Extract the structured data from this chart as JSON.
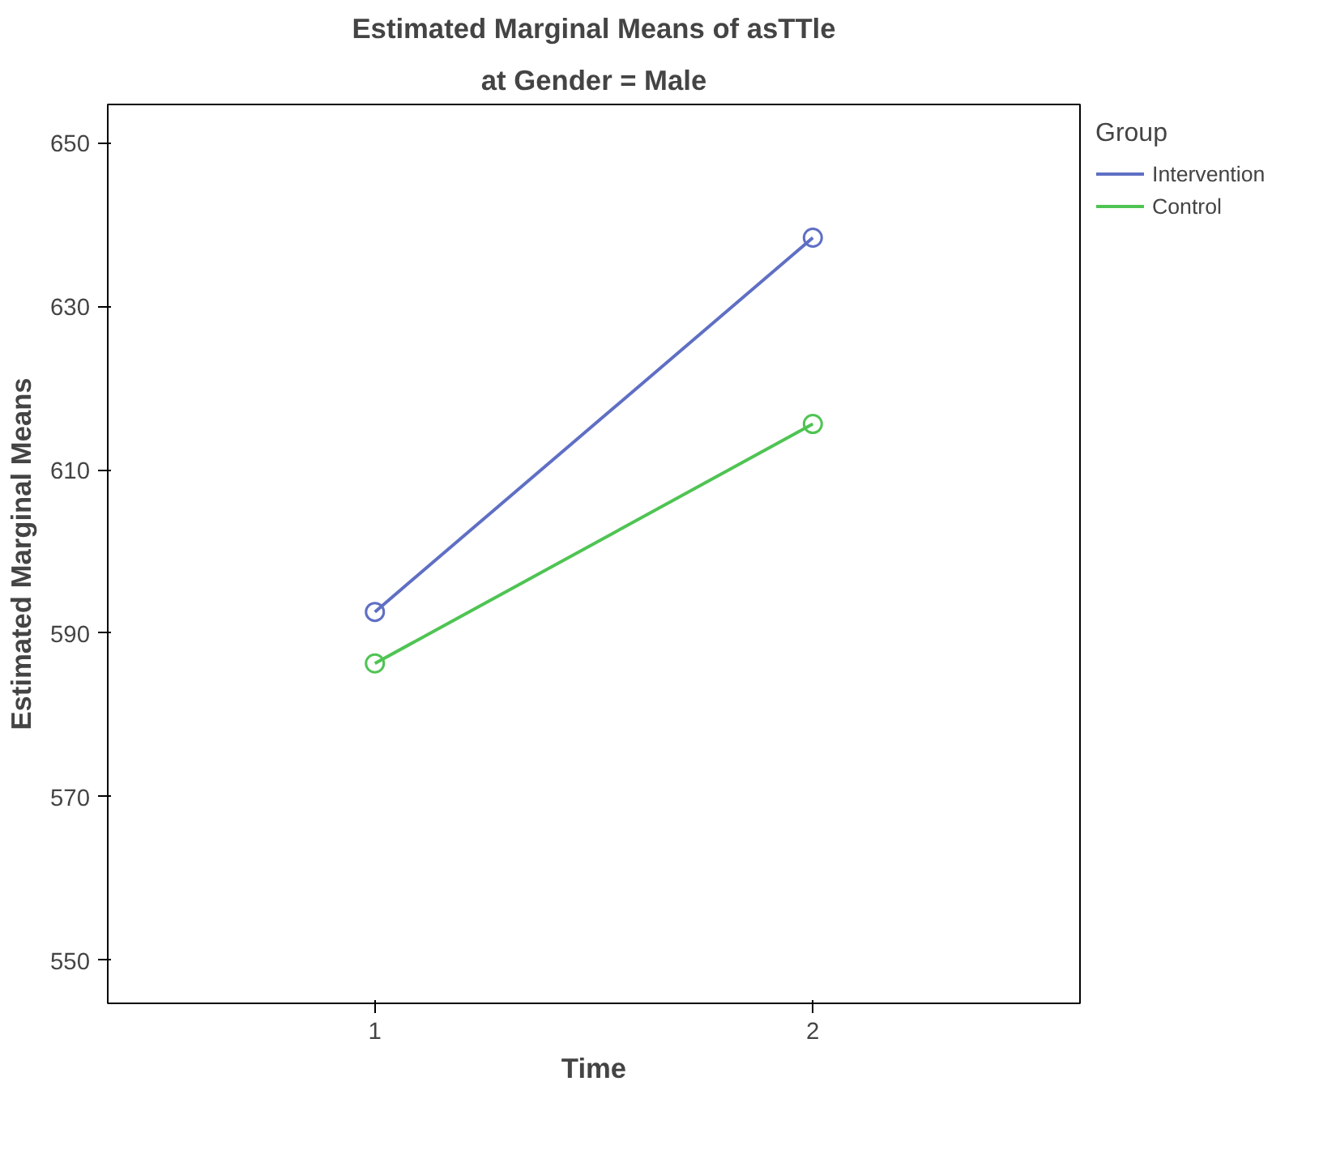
{
  "chart_data": {
    "type": "line",
    "title": "Estimated Marginal Means of asTTle",
    "subtitle": "at Gender = Male",
    "xlabel": "Time",
    "ylabel": "Estimated Marginal Means",
    "legend_title": "Group",
    "x": [
      1,
      2
    ],
    "series": [
      {
        "name": "Intervention",
        "color": "#5f6fc4",
        "values": [
          592.6,
          638.4
        ]
      },
      {
        "name": "Control",
        "color": "#4fc453",
        "values": [
          586.3,
          615.6
        ]
      }
    ],
    "xlim": [
      0.39,
      2.61
    ],
    "ylim": [
      544.7,
      654.7
    ],
    "xticks": [
      1,
      2
    ],
    "yticks": [
      550,
      570,
      590,
      610,
      630,
      650
    ],
    "grid": false,
    "legend": "top right",
    "marker": "circle",
    "line_style": "solid"
  }
}
